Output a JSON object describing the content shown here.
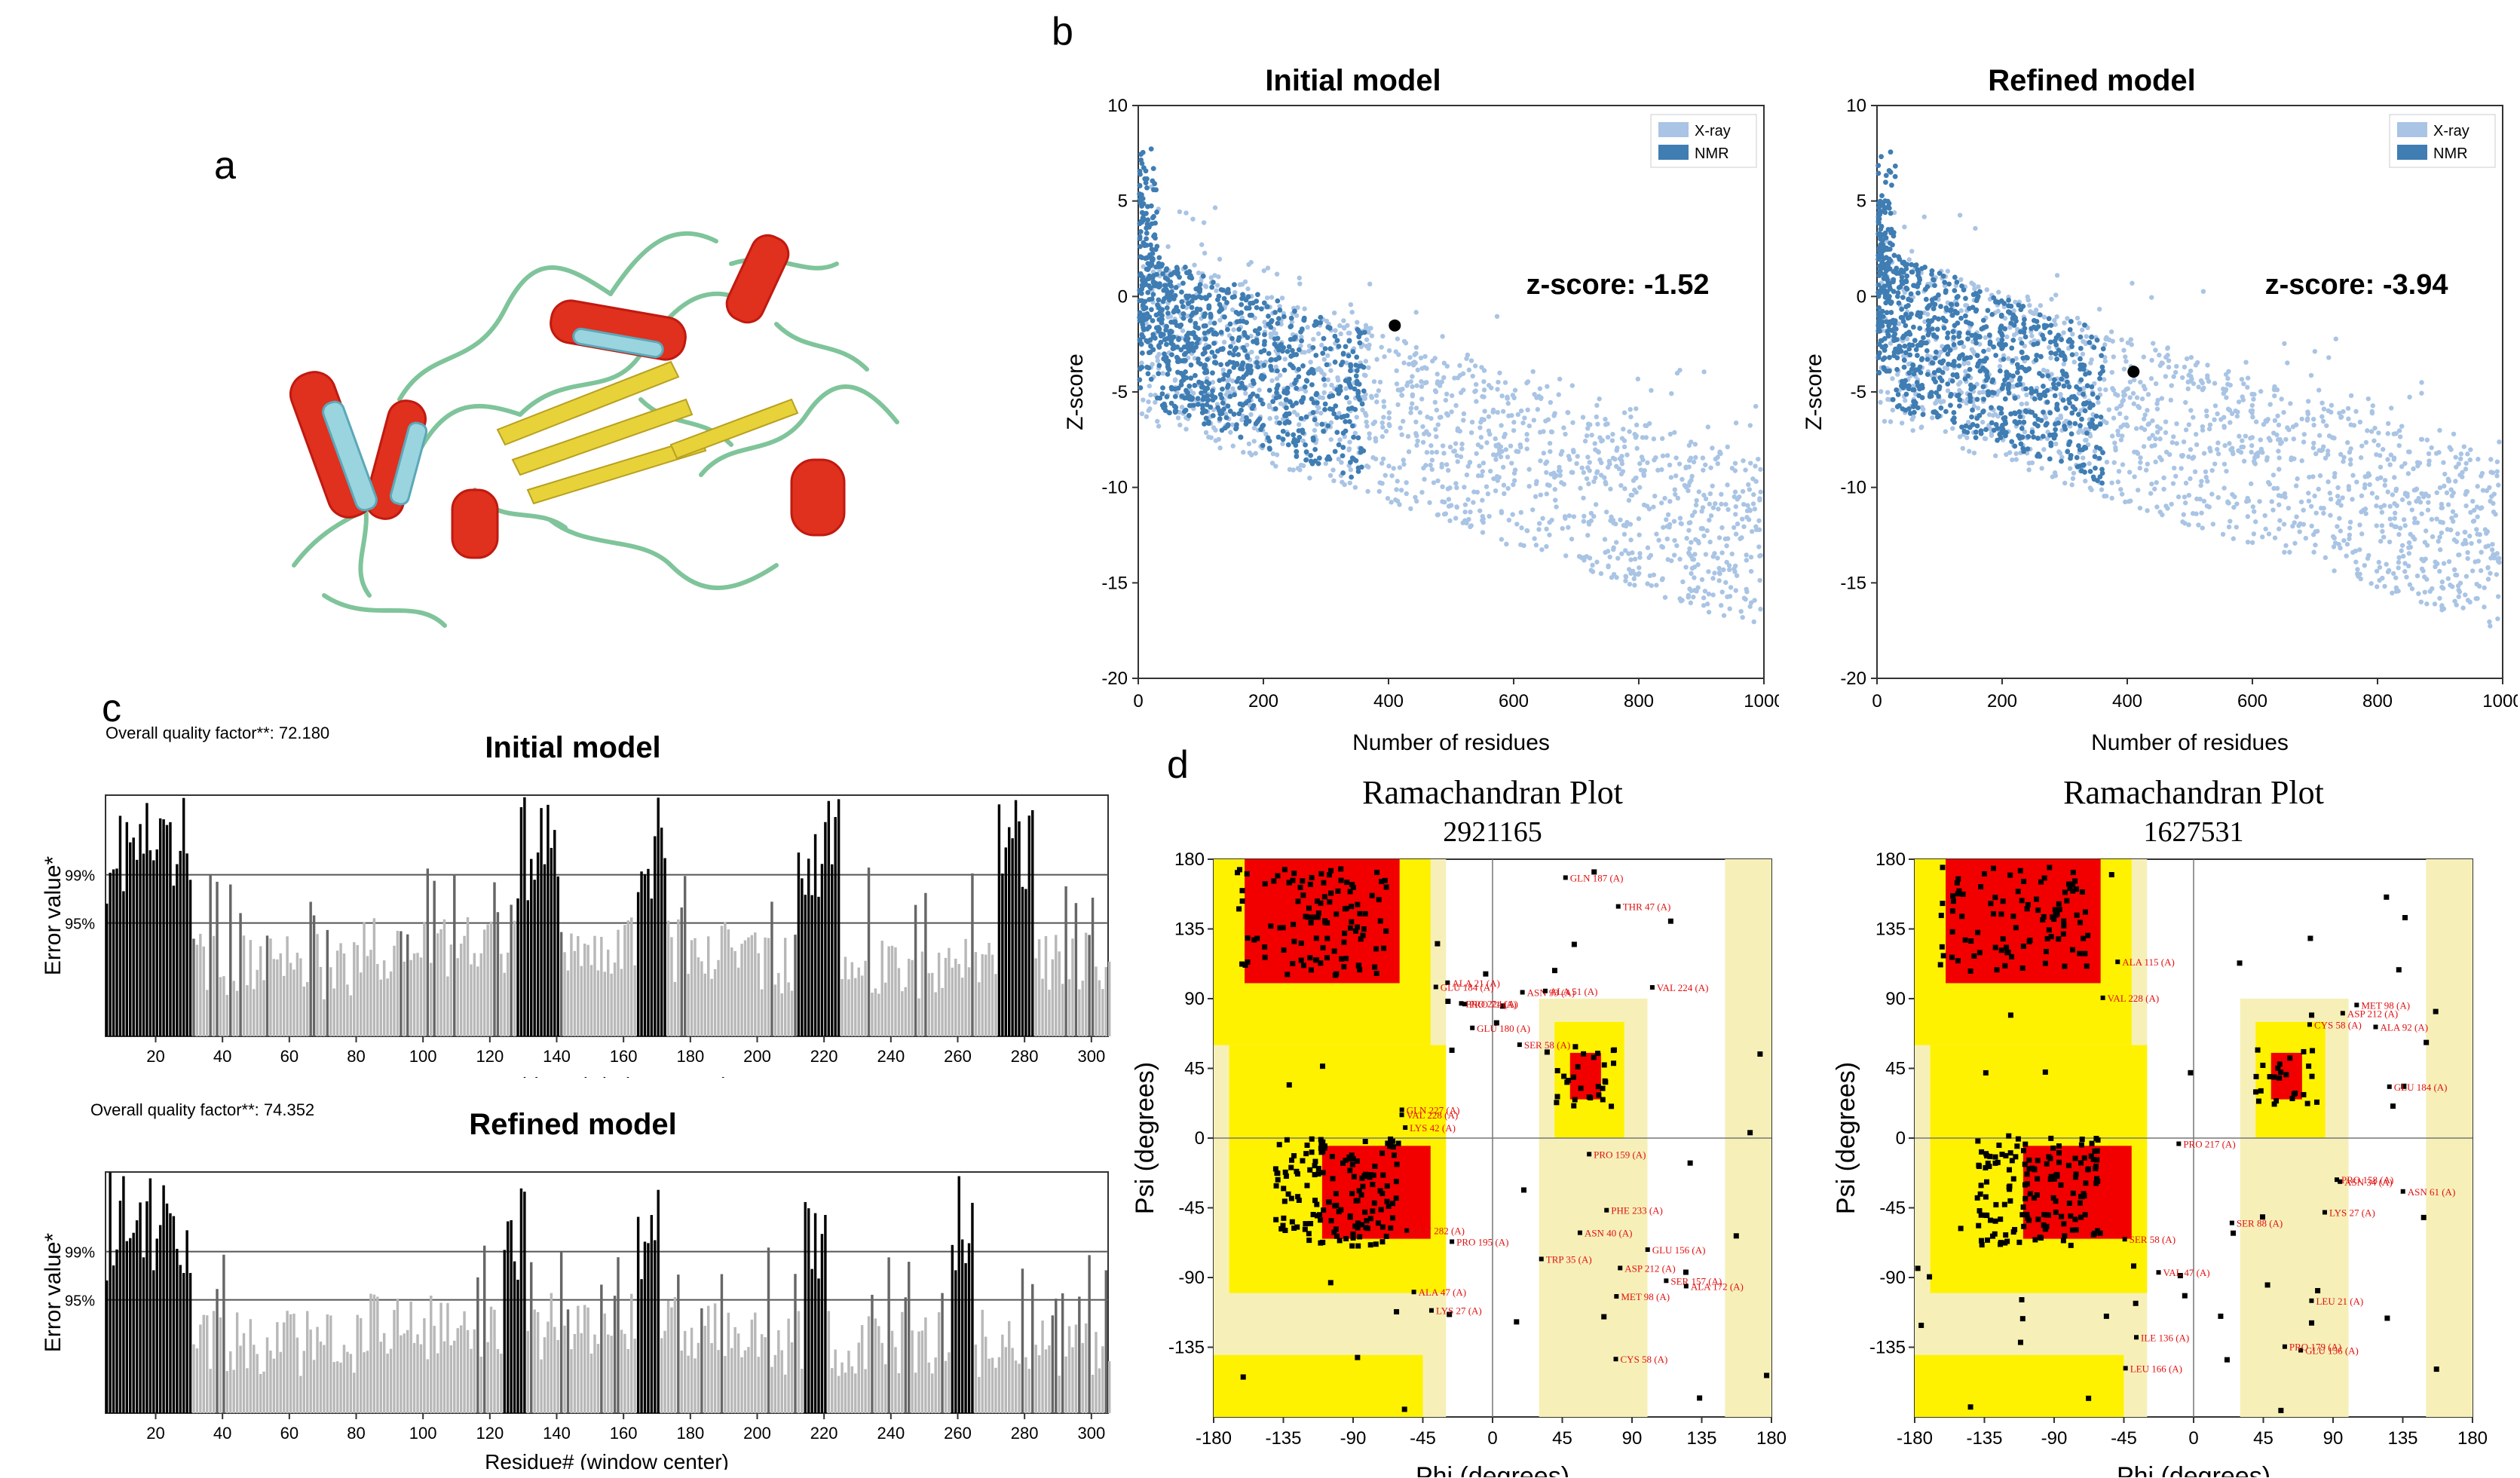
{
  "figure": {
    "panel_a": {
      "letter": "a"
    },
    "panel_b": {
      "letter": "b",
      "charts": [
        {
          "title": "Initial model",
          "xlabel": "Number of residues",
          "ylabel": "Z-score",
          "annotation": "z-score: -1.52",
          "legend": [
            "X-ray",
            "NMR"
          ],
          "xlim": [
            0,
            1000
          ],
          "ylim": [
            -20,
            10
          ],
          "xticks": [
            0,
            200,
            400,
            600,
            800,
            1000
          ],
          "yticks": [
            10,
            5,
            0,
            -5,
            -10,
            -15,
            -20
          ],
          "marker": {
            "x": 410,
            "y": -1.52
          }
        },
        {
          "title": "Refined model",
          "xlabel": "Number of residues",
          "ylabel": "Z-score",
          "annotation": "z-score: -3.94",
          "legend": [
            "X-ray",
            "NMR"
          ],
          "xlim": [
            0,
            1000
          ],
          "ylim": [
            -20,
            10
          ],
          "xticks": [
            0,
            200,
            400,
            600,
            800,
            1000
          ],
          "yticks": [
            10,
            5,
            0,
            -5,
            -10,
            -15,
            -20
          ],
          "marker": {
            "x": 410,
            "y": -3.94
          }
        }
      ]
    },
    "panel_c": {
      "letter": "c",
      "charts": [
        {
          "title": "Initial model",
          "quality_label": "Overall quality factor**: 72.180",
          "ylabel": "Error value*",
          "xlabel": "Residue# (window center)",
          "thresholds": [
            "99%",
            "95%"
          ],
          "xticks": [
            20,
            40,
            60,
            80,
            100,
            120,
            140,
            160,
            180,
            200,
            220,
            240,
            260,
            280,
            300
          ]
        },
        {
          "title": "Refined model",
          "quality_label": "Overall quality factor**: 74.352",
          "ylabel": "Error value*",
          "xlabel": "Residue# (window center)",
          "thresholds": [
            "99%",
            "95%"
          ],
          "xticks": [
            20,
            40,
            60,
            80,
            100,
            120,
            140,
            160,
            180,
            200,
            220,
            240,
            260,
            280,
            300
          ]
        }
      ]
    },
    "panel_d": {
      "letter": "d",
      "charts": [
        {
          "title": "Ramachandran Plot",
          "subtitle": "2921165",
          "xlabel": "Phi (degrees)",
          "ylabel": "Psi (degrees)",
          "xticks": [
            -180,
            -135,
            -90,
            -45,
            0,
            45,
            90,
            135,
            180
          ],
          "yticks": [
            180,
            135,
            90,
            45,
            0,
            -45,
            -90,
            -135
          ],
          "labels": [
            "VAL 228 (A)",
            "GLU 156 (A)",
            "GLN 282 (A)",
            "SER 58 (A)",
            "ALA 47 (A)",
            "GLN 187 (A)",
            "MET 98 (A)",
            "PRO 195 (A)",
            "THR 47 (A)",
            "TRP 35 (A)",
            "ALA 21 (A)",
            "PHE 233 (A)",
            "ASN 93 (A)",
            "SER 157 (A)",
            "VAL 224 (A)",
            "PRO 224 (A)",
            "ALA 51 (A)",
            "PRO 71 (A)",
            "GLN 227 (A)",
            "ALA 172 (A)",
            "ASN 40 (A)",
            "GLU 184 (A)",
            "LYS 42 (A)",
            "LYS 27 (A)",
            "ASP 212 (A)",
            "PRO 159 (A)",
            "GLU 180 (A)",
            "CYS 58 (A)"
          ]
        },
        {
          "title": "Ramachandran Plot",
          "subtitle": "1627531",
          "xlabel": "Phi (degrees)",
          "ylabel": "Psi (degrees)",
          "xticks": [
            -180,
            -135,
            -90,
            -45,
            0,
            45,
            90,
            135,
            180
          ],
          "yticks": [
            180,
            135,
            90,
            45,
            0,
            -45,
            -90,
            -135
          ],
          "labels": [
            "VAL 228 (A)",
            "GLU 156 (A)",
            "LEU 166 (A)",
            "VAL 47 (A)",
            "PRO 179 (A)",
            "ALA 115 (A)",
            "MET 98 (A)",
            "SER 58 (A)",
            "ILE 136 (A)",
            "ASN 61 (A)",
            "PRO 217 (A)",
            "LEU 21 (A)",
            "ASP 212 (A)",
            "SER 88 (A)",
            "ALA 92 (A)",
            "CYS 58 (A)",
            "GLU 184 (A)",
            "LYS 27 (A)",
            "PRO 158 (A)",
            "ASN 34 (A)"
          ]
        }
      ]
    }
  }
}
